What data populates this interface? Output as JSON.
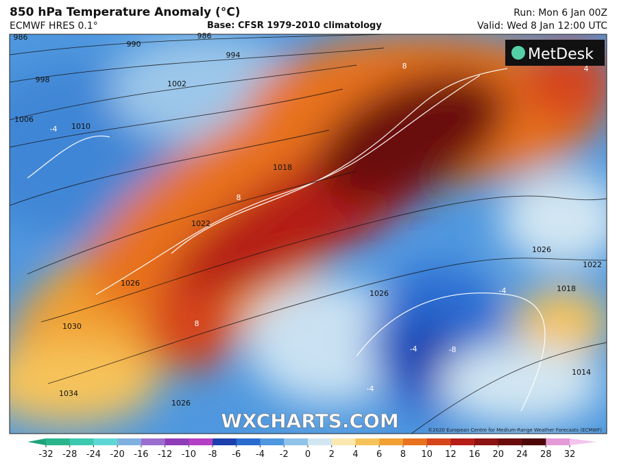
{
  "header": {
    "title": "850 hPa Temperature Anomaly (°C)",
    "model": "ECMWF HRES 0.1°",
    "base": "Base: CFSR 1979-2010 climatology",
    "run": "Run: Mon 6 Jan 00Z",
    "valid": "Valid: Wed 8 Jan 12:00 UTC"
  },
  "map": {
    "logo": "MetDesk",
    "watermark": "WXCHARTS.COM",
    "copyright": "©2020 European Centre for Medium-Range Weather Forecasts (ECMWF)",
    "isobar_labels": [
      986,
      990,
      986,
      994,
      998,
      1002,
      1006,
      1010,
      1018,
      1022,
      1026,
      1030,
      1034,
      1026,
      1026,
      1026,
      1022,
      1018,
      1014
    ],
    "anomaly_labels": [
      -4,
      8,
      8,
      4,
      8,
      -4,
      -8,
      -4,
      -4
    ]
  },
  "colorbar": {
    "ticks": [
      -32,
      -28,
      -24,
      -20,
      -16,
      -12,
      -10,
      -8,
      -6,
      -4,
      -2,
      0,
      2,
      4,
      6,
      8,
      10,
      12,
      16,
      20,
      24,
      28,
      32
    ],
    "colors": [
      "#1fa37a",
      "#2bb58d",
      "#3cc9b0",
      "#5fd6d6",
      "#7fb0e0",
      "#9b6fcf",
      "#8f3cb8",
      "#b43ec4",
      "#1c3fae",
      "#2a6bd0",
      "#4f98df",
      "#8fc3ea",
      "#d2e6f2",
      "#fbe7b0",
      "#f6c35a",
      "#f1a031",
      "#e8721f",
      "#d5441b",
      "#b51d17",
      "#8d1212",
      "#6b0c0c",
      "#4d0707",
      "#e39ad6",
      "#f4c4ee"
    ]
  }
}
